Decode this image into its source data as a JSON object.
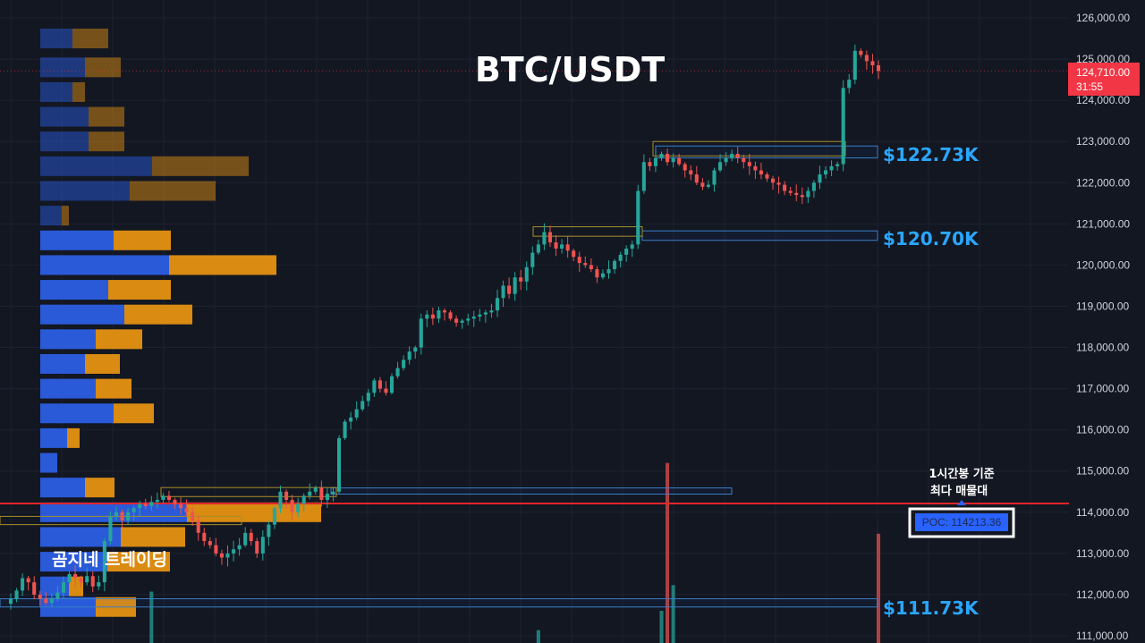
{
  "title": "BTC/USDT",
  "brand": "곰지네 트레이딩",
  "annotation": {
    "line1": "1시간봉 기준",
    "line2": "최다 매물대"
  },
  "poc_label": "POC: 114213.36",
  "current_price": {
    "price": "124,710.00",
    "countdown": "31:55"
  },
  "levels": [
    {
      "label": "$122.73K",
      "value": 122730
    },
    {
      "label": "$120.70K",
      "value": 120700
    },
    {
      "label": "$111.73K",
      "value": 111730
    }
  ],
  "colors": {
    "background": "#131722",
    "up": "#26a69a",
    "down": "#ef5350",
    "vp_buy": "#2a5ad8",
    "vp_sell": "#d98b12",
    "poc_line": "#e0262b",
    "level_text": "#2aa7ff",
    "price_tag": "#f23645"
  },
  "chart_data": {
    "type": "candlestick",
    "title": "BTC/USDT",
    "ylim": [
      110800,
      126400
    ],
    "y_ticks": [
      "126,000.00",
      "125,000.00",
      "124,000.00",
      "123,000.00",
      "122,000.00",
      "121,000.00",
      "120,000.00",
      "119,000.00",
      "118,000.00",
      "117,000.00",
      "116,000.00",
      "115,000.00",
      "114,000.00",
      "113,000.00",
      "112,000.00",
      "111,000.00"
    ],
    "y_tick_values": [
      126000,
      125000,
      124000,
      123000,
      122000,
      121000,
      120000,
      119000,
      118000,
      117000,
      116000,
      115000,
      114000,
      113000,
      112000,
      111000
    ],
    "poc": 114213.36,
    "last_price": 124710,
    "close_path": [
      111900,
      112100,
      112400,
      112300,
      112000,
      111900,
      111800,
      111900,
      112050,
      112300,
      112500,
      112400,
      112300,
      112450,
      112200,
      112300,
      113300,
      113900,
      114000,
      113800,
      114000,
      114100,
      114200,
      114150,
      114250,
      114300,
      114400,
      114300,
      114200,
      114100,
      114000,
      113800,
      113500,
      113300,
      113200,
      113000,
      112900,
      113000,
      113100,
      113200,
      113500,
      113300,
      113000,
      113400,
      113700,
      114100,
      114500,
      114300,
      114000,
      114200,
      114400,
      114500,
      114600,
      114300,
      114450,
      114500,
      115800,
      116200,
      116300,
      116500,
      116700,
      116900,
      117200,
      117000,
      116900,
      117300,
      117500,
      117700,
      117900,
      118000,
      118700,
      118800,
      118700,
      118900,
      118850,
      118700,
      118600,
      118650,
      118700,
      118750,
      118800,
      118850,
      118900,
      119200,
      119500,
      119300,
      119700,
      119600,
      119950,
      120300,
      120500,
      120800,
      120550,
      120400,
      120500,
      120350,
      120200,
      120050,
      120000,
      119900,
      119700,
      119800,
      119900,
      120100,
      120250,
      120400,
      120500,
      121800,
      122500,
      122400,
      122600,
      122700,
      122500,
      122600,
      122450,
      122300,
      122200,
      122000,
      121900,
      121950,
      122300,
      122500,
      122600,
      122700,
      122600,
      122500,
      122400,
      122300,
      122200,
      122100,
      122000,
      121950,
      121800,
      121750,
      121700,
      121650,
      121800,
      122000,
      122200,
      122300,
      122400,
      122450,
      124300,
      124500,
      125200,
      125100,
      124950,
      124850,
      124710
    ],
    "volume_spikes": [
      {
        "index_from_start": 24,
        "height_pct": 8
      },
      {
        "index_from_start": 90,
        "height_pct": 2
      },
      {
        "index_from_start": 111,
        "height_pct": 5
      },
      {
        "index_from_start": 112,
        "height_pct": 28
      },
      {
        "index_from_start": 113,
        "height_pct": 9
      },
      {
        "index_from_start": 155,
        "height_pct": 17
      }
    ],
    "volume_profile": {
      "rows": [
        {
          "price": 125500,
          "buy": 36,
          "sell": 40,
          "dim": true
        },
        {
          "price": 124800,
          "buy": 50,
          "sell": 40,
          "dim": true
        },
        {
          "price": 124200,
          "buy": 36,
          "sell": 14,
          "dim": true
        },
        {
          "price": 123600,
          "buy": 54,
          "sell": 40,
          "dim": true
        },
        {
          "price": 123000,
          "buy": 54,
          "sell": 40,
          "dim": true
        },
        {
          "price": 122400,
          "buy": 125,
          "sell": 108,
          "dim": true
        },
        {
          "price": 121800,
          "buy": 100,
          "sell": 96,
          "dim": true
        },
        {
          "price": 121200,
          "buy": 24,
          "sell": 8,
          "dim": true
        },
        {
          "price": 120600,
          "buy": 82,
          "sell": 64,
          "dim": false
        },
        {
          "price": 120000,
          "buy": 144,
          "sell": 120,
          "dim": false
        },
        {
          "price": 119400,
          "buy": 76,
          "sell": 70,
          "dim": false
        },
        {
          "price": 118800,
          "buy": 94,
          "sell": 76,
          "dim": false
        },
        {
          "price": 118200,
          "buy": 62,
          "sell": 52,
          "dim": false
        },
        {
          "price": 117600,
          "buy": 50,
          "sell": 39,
          "dim": false
        },
        {
          "price": 117000,
          "buy": 62,
          "sell": 40,
          "dim": false
        },
        {
          "price": 116400,
          "buy": 82,
          "sell": 45,
          "dim": false
        },
        {
          "price": 115800,
          "buy": 30,
          "sell": 14,
          "dim": false
        },
        {
          "price": 115200,
          "buy": 19,
          "sell": 0,
          "dim": false
        },
        {
          "price": 114600,
          "buy": 50,
          "sell": 33,
          "dim": false
        },
        {
          "price": 114000,
          "buy": 164,
          "sell": 150,
          "dim": false
        },
        {
          "price": 113400,
          "buy": 90,
          "sell": 72,
          "dim": false
        },
        {
          "price": 112800,
          "buy": 75,
          "sell": 70,
          "dim": false
        },
        {
          "price": 112200,
          "buy": 32,
          "sell": 16,
          "dim": false
        },
        {
          "price": 111700,
          "buy": 62,
          "sell": 45,
          "dim": false
        }
      ]
    }
  }
}
